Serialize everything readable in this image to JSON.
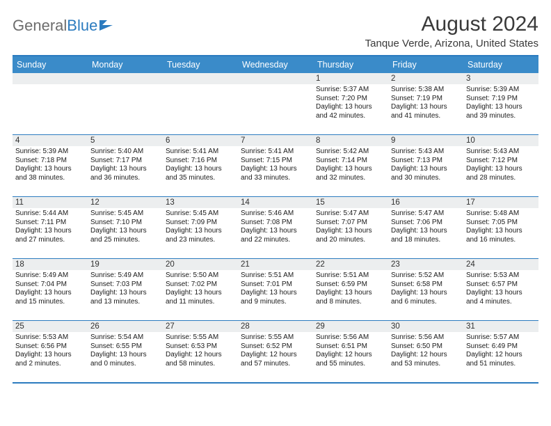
{
  "logo": {
    "text_gray": "General",
    "text_blue": "Blue"
  },
  "title": "August 2024",
  "location": "Tanque Verde, Arizona, United States",
  "colors": {
    "header_bg": "#3a8bc9",
    "header_text": "#ffffff",
    "border": "#2b7bbf",
    "daynum_bg": "#eceeef",
    "text": "#1a1a1a",
    "logo_gray": "#6d6d6d",
    "logo_blue": "#2b7bbf"
  },
  "day_names": [
    "Sunday",
    "Monday",
    "Tuesday",
    "Wednesday",
    "Thursday",
    "Friday",
    "Saturday"
  ],
  "weeks": [
    [
      {
        "n": "",
        "lines": []
      },
      {
        "n": "",
        "lines": []
      },
      {
        "n": "",
        "lines": []
      },
      {
        "n": "",
        "lines": []
      },
      {
        "n": "1",
        "lines": [
          "Sunrise: 5:37 AM",
          "Sunset: 7:20 PM",
          "Daylight: 13 hours",
          "and 42 minutes."
        ]
      },
      {
        "n": "2",
        "lines": [
          "Sunrise: 5:38 AM",
          "Sunset: 7:19 PM",
          "Daylight: 13 hours",
          "and 41 minutes."
        ]
      },
      {
        "n": "3",
        "lines": [
          "Sunrise: 5:39 AM",
          "Sunset: 7:19 PM",
          "Daylight: 13 hours",
          "and 39 minutes."
        ]
      }
    ],
    [
      {
        "n": "4",
        "lines": [
          "Sunrise: 5:39 AM",
          "Sunset: 7:18 PM",
          "Daylight: 13 hours",
          "and 38 minutes."
        ]
      },
      {
        "n": "5",
        "lines": [
          "Sunrise: 5:40 AM",
          "Sunset: 7:17 PM",
          "Daylight: 13 hours",
          "and 36 minutes."
        ]
      },
      {
        "n": "6",
        "lines": [
          "Sunrise: 5:41 AM",
          "Sunset: 7:16 PM",
          "Daylight: 13 hours",
          "and 35 minutes."
        ]
      },
      {
        "n": "7",
        "lines": [
          "Sunrise: 5:41 AM",
          "Sunset: 7:15 PM",
          "Daylight: 13 hours",
          "and 33 minutes."
        ]
      },
      {
        "n": "8",
        "lines": [
          "Sunrise: 5:42 AM",
          "Sunset: 7:14 PM",
          "Daylight: 13 hours",
          "and 32 minutes."
        ]
      },
      {
        "n": "9",
        "lines": [
          "Sunrise: 5:43 AM",
          "Sunset: 7:13 PM",
          "Daylight: 13 hours",
          "and 30 minutes."
        ]
      },
      {
        "n": "10",
        "lines": [
          "Sunrise: 5:43 AM",
          "Sunset: 7:12 PM",
          "Daylight: 13 hours",
          "and 28 minutes."
        ]
      }
    ],
    [
      {
        "n": "11",
        "lines": [
          "Sunrise: 5:44 AM",
          "Sunset: 7:11 PM",
          "Daylight: 13 hours",
          "and 27 minutes."
        ]
      },
      {
        "n": "12",
        "lines": [
          "Sunrise: 5:45 AM",
          "Sunset: 7:10 PM",
          "Daylight: 13 hours",
          "and 25 minutes."
        ]
      },
      {
        "n": "13",
        "lines": [
          "Sunrise: 5:45 AM",
          "Sunset: 7:09 PM",
          "Daylight: 13 hours",
          "and 23 minutes."
        ]
      },
      {
        "n": "14",
        "lines": [
          "Sunrise: 5:46 AM",
          "Sunset: 7:08 PM",
          "Daylight: 13 hours",
          "and 22 minutes."
        ]
      },
      {
        "n": "15",
        "lines": [
          "Sunrise: 5:47 AM",
          "Sunset: 7:07 PM",
          "Daylight: 13 hours",
          "and 20 minutes."
        ]
      },
      {
        "n": "16",
        "lines": [
          "Sunrise: 5:47 AM",
          "Sunset: 7:06 PM",
          "Daylight: 13 hours",
          "and 18 minutes."
        ]
      },
      {
        "n": "17",
        "lines": [
          "Sunrise: 5:48 AM",
          "Sunset: 7:05 PM",
          "Daylight: 13 hours",
          "and 16 minutes."
        ]
      }
    ],
    [
      {
        "n": "18",
        "lines": [
          "Sunrise: 5:49 AM",
          "Sunset: 7:04 PM",
          "Daylight: 13 hours",
          "and 15 minutes."
        ]
      },
      {
        "n": "19",
        "lines": [
          "Sunrise: 5:49 AM",
          "Sunset: 7:03 PM",
          "Daylight: 13 hours",
          "and 13 minutes."
        ]
      },
      {
        "n": "20",
        "lines": [
          "Sunrise: 5:50 AM",
          "Sunset: 7:02 PM",
          "Daylight: 13 hours",
          "and 11 minutes."
        ]
      },
      {
        "n": "21",
        "lines": [
          "Sunrise: 5:51 AM",
          "Sunset: 7:01 PM",
          "Daylight: 13 hours",
          "and 9 minutes."
        ]
      },
      {
        "n": "22",
        "lines": [
          "Sunrise: 5:51 AM",
          "Sunset: 6:59 PM",
          "Daylight: 13 hours",
          "and 8 minutes."
        ]
      },
      {
        "n": "23",
        "lines": [
          "Sunrise: 5:52 AM",
          "Sunset: 6:58 PM",
          "Daylight: 13 hours",
          "and 6 minutes."
        ]
      },
      {
        "n": "24",
        "lines": [
          "Sunrise: 5:53 AM",
          "Sunset: 6:57 PM",
          "Daylight: 13 hours",
          "and 4 minutes."
        ]
      }
    ],
    [
      {
        "n": "25",
        "lines": [
          "Sunrise: 5:53 AM",
          "Sunset: 6:56 PM",
          "Daylight: 13 hours",
          "and 2 minutes."
        ]
      },
      {
        "n": "26",
        "lines": [
          "Sunrise: 5:54 AM",
          "Sunset: 6:55 PM",
          "Daylight: 13 hours",
          "and 0 minutes."
        ]
      },
      {
        "n": "27",
        "lines": [
          "Sunrise: 5:55 AM",
          "Sunset: 6:53 PM",
          "Daylight: 12 hours",
          "and 58 minutes."
        ]
      },
      {
        "n": "28",
        "lines": [
          "Sunrise: 5:55 AM",
          "Sunset: 6:52 PM",
          "Daylight: 12 hours",
          "and 57 minutes."
        ]
      },
      {
        "n": "29",
        "lines": [
          "Sunrise: 5:56 AM",
          "Sunset: 6:51 PM",
          "Daylight: 12 hours",
          "and 55 minutes."
        ]
      },
      {
        "n": "30",
        "lines": [
          "Sunrise: 5:56 AM",
          "Sunset: 6:50 PM",
          "Daylight: 12 hours",
          "and 53 minutes."
        ]
      },
      {
        "n": "31",
        "lines": [
          "Sunrise: 5:57 AM",
          "Sunset: 6:49 PM",
          "Daylight: 12 hours",
          "and 51 minutes."
        ]
      }
    ]
  ]
}
